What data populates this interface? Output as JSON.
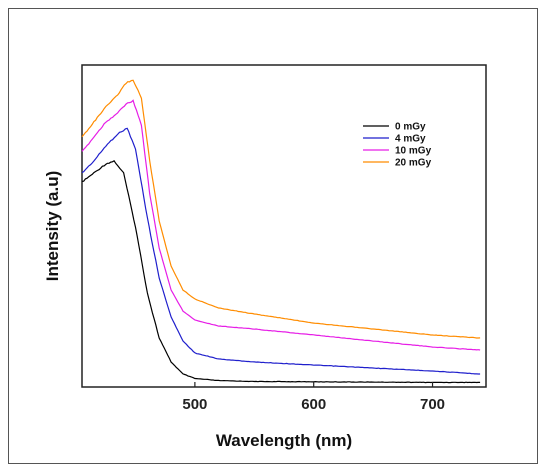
{
  "chart_data": {
    "type": "line",
    "xlabel": "Wavelength (nm)",
    "ylabel": "Intensity (a.u)",
    "xlim": [
      405,
      745
    ],
    "ylim": [
      0,
      1.0
    ],
    "y_ticks_visible": false,
    "x_ticks": [
      500,
      600,
      700
    ],
    "grid": false,
    "legend_position": "top-right",
    "series": [
      {
        "name": "0 mGy",
        "color": "#000000",
        "x": [
          405,
          415,
          425,
          432,
          440,
          450,
          460,
          470,
          480,
          490,
          500,
          520,
          550,
          600,
          650,
          700,
          740
        ],
        "y": [
          0.67,
          0.7,
          0.73,
          0.74,
          0.7,
          0.52,
          0.3,
          0.15,
          0.07,
          0.03,
          0.015,
          0.008,
          0.005,
          0.004,
          0.003,
          0.002,
          0.002
        ]
      },
      {
        "name": "4 mGy",
        "color": "#1f1fcc",
        "x": [
          405,
          415,
          425,
          435,
          443,
          450,
          460,
          470,
          480,
          490,
          500,
          520,
          550,
          600,
          650,
          700,
          740
        ],
        "y": [
          0.7,
          0.74,
          0.79,
          0.83,
          0.85,
          0.78,
          0.55,
          0.35,
          0.22,
          0.14,
          0.1,
          0.08,
          0.07,
          0.06,
          0.05,
          0.04,
          0.03
        ]
      },
      {
        "name": "10 mGy",
        "color": "#e61ee6",
        "x": [
          405,
          415,
          425,
          435,
          442,
          448,
          455,
          462,
          470,
          480,
          490,
          500,
          520,
          550,
          600,
          650,
          700,
          740
        ],
        "y": [
          0.77,
          0.82,
          0.87,
          0.9,
          0.93,
          0.94,
          0.86,
          0.63,
          0.45,
          0.31,
          0.24,
          0.21,
          0.19,
          0.18,
          0.16,
          0.14,
          0.12,
          0.11
        ]
      },
      {
        "name": "20 mGy",
        "color": "#ff8c00",
        "x": [
          405,
          415,
          425,
          435,
          442,
          448,
          455,
          462,
          470,
          480,
          490,
          500,
          520,
          550,
          600,
          650,
          700,
          740
        ],
        "y": [
          0.82,
          0.87,
          0.92,
          0.96,
          1.0,
          1.01,
          0.95,
          0.74,
          0.54,
          0.39,
          0.31,
          0.28,
          0.25,
          0.23,
          0.2,
          0.18,
          0.16,
          0.15
        ]
      }
    ]
  }
}
